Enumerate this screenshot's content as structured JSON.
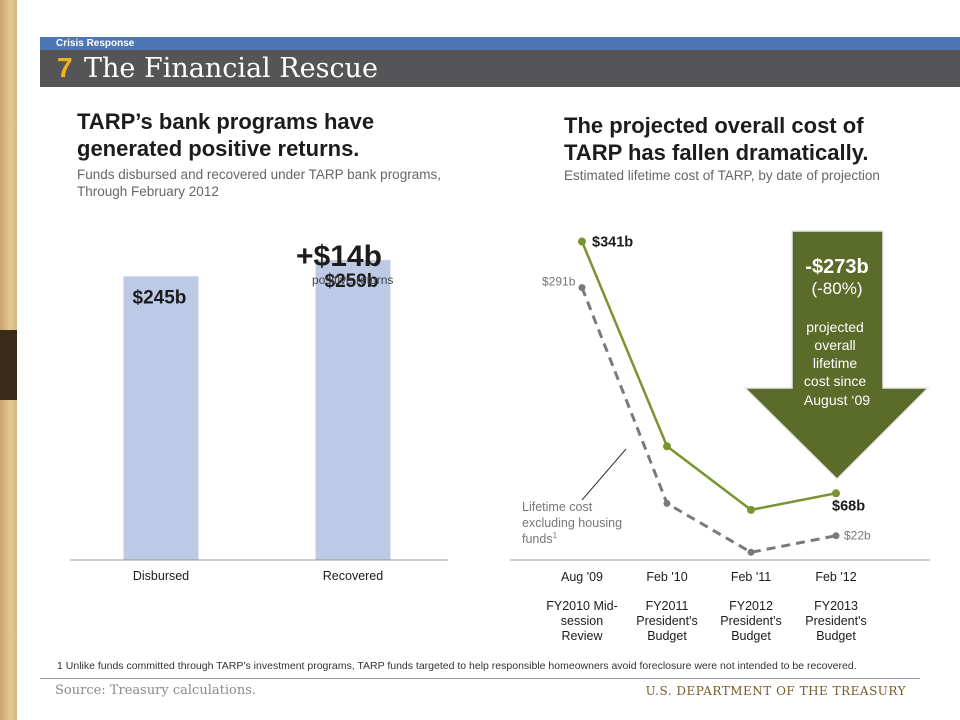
{
  "header": {
    "section": "Crisis Response",
    "number": "7",
    "title": "The Financial Rescue"
  },
  "left": {
    "headline_line1": "TARP’s bank programs have",
    "headline_line2": "generated positive returns.",
    "subtitle_line1": "Funds disbursed and recovered under TARP bank programs,",
    "subtitle_line2": "Through February 2012",
    "delta_value": "+$14b",
    "delta_caption": "positive returns"
  },
  "right": {
    "headline_line1": "The projected overall cost of",
    "headline_line2": "TARP has fallen dramatically.",
    "subtitle": "Estimated lifetime cost of TARP, by date of projection",
    "arrow_value": "-$273b",
    "arrow_pct": "(-80%)",
    "arrow_text": [
      "projected",
      "overall",
      "lifetime",
      "cost since",
      "August ‘09"
    ],
    "annotation": [
      "Lifetime cost",
      "excluding housing",
      "funds"
    ],
    "annotation_sup": "1"
  },
  "footnote": {
    "marker": "1",
    "text": "Unlike funds committed through TARP’s investment programs, TARP funds targeted to help responsible homeowners avoid foreclosure were not intended to be recovered."
  },
  "footer": {
    "source": "Source: Treasury calculations.",
    "department": "U.S. DEPARTMENT OF THE TREASURY"
  },
  "colors": {
    "bar": "#bccae6",
    "green": "#7a9431",
    "gray_dash": "#7a7a7a",
    "arrow": "#5a6b2a",
    "accent_number": "#f2b21b",
    "header_blue": "#4e76b3",
    "header_gray": "#555557"
  },
  "chart_data": [
    {
      "type": "bar",
      "categories": [
        "Disbursed",
        "Recovered"
      ],
      "values": [
        245,
        259
      ],
      "labels": [
        "$245b",
        "$259b"
      ],
      "unit": "b",
      "ylim": [
        0,
        285
      ],
      "grid": false
    },
    {
      "type": "line",
      "x": [
        "Aug '09",
        "Feb '10",
        "Feb '11",
        "Feb '12"
      ],
      "x_sublabels": [
        [
          "FY2010 Mid-",
          "session",
          "Review"
        ],
        [
          "FY2011",
          "President's",
          "Budget"
        ],
        [
          "FY2012",
          "President's",
          "Budget"
        ],
        [
          "FY2013",
          "President's",
          "Budget"
        ]
      ],
      "series": [
        {
          "values": [
            341,
            119,
            50,
            68
          ],
          "labels": [
            "$341b",
            "",
            "",
            "$68b"
          ],
          "style": "solid",
          "color": "#7a9431"
        },
        {
          "values": [
            291,
            57,
            4,
            22
          ],
          "labels": [
            "$291b",
            "",
            "",
            "$22b"
          ],
          "style": "dashed",
          "color": "#7a7a7a"
        }
      ],
      "ylim": [
        0,
        360
      ],
      "grid": false
    }
  ]
}
